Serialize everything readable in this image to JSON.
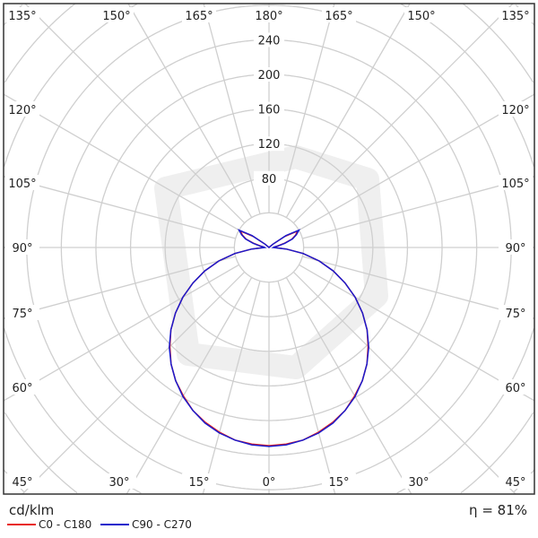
{
  "chart_data": {
    "type": "polar",
    "title": "",
    "unit": "cd/klm",
    "efficiency": "η = 81%",
    "radial_ticks": [
      80,
      120,
      160,
      200,
      240
    ],
    "radial_rings": [
      40,
      80,
      120,
      160,
      200,
      240,
      280,
      320,
      360,
      400,
      440
    ],
    "angle_labels": [
      "135°",
      "150°",
      "165°",
      "180°",
      "165°",
      "150°",
      "135°",
      "120°",
      "105°",
      "90°",
      "75°",
      "60°",
      "45°",
      "30°",
      "15°",
      "0°",
      "15°",
      "30°",
      "45°",
      "120°",
      "105°",
      "90°",
      "75°",
      "60°"
    ],
    "angles_deg": [
      0,
      5,
      10,
      15,
      20,
      25,
      30,
      35,
      40,
      45,
      50,
      55,
      60,
      65,
      70,
      75,
      80,
      85,
      90,
      95,
      100,
      105,
      110,
      115,
      120,
      125,
      130,
      135,
      140,
      150,
      160,
      170,
      180
    ],
    "series": [
      {
        "name": "C0 - C180",
        "color": "#e8231f",
        "values": [
          229,
          228,
          226,
          221,
          215,
          208,
          198,
          188,
          176,
          162,
          148,
          132,
          115,
          97,
          79,
          60,
          40,
          20,
          6,
          6,
          10,
          18,
          28,
          34,
          38,
          22,
          6,
          0,
          0,
          0,
          0,
          0,
          0
        ]
      },
      {
        "name": "C90 - C270",
        "color": "#1a1acc",
        "values": [
          230,
          229,
          226,
          222,
          216,
          208,
          199,
          188,
          176,
          163,
          148,
          132,
          115,
          97,
          79,
          60,
          40,
          20,
          5,
          6,
          11,
          19,
          29,
          35,
          40,
          24,
          6,
          0,
          0,
          0,
          0,
          0,
          0
        ]
      }
    ]
  }
}
